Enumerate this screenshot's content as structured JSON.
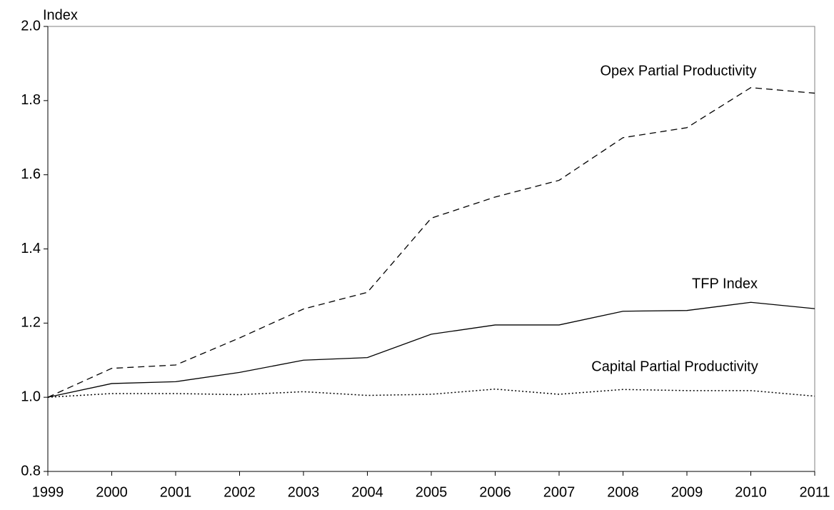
{
  "chart_data": {
    "type": "line",
    "y_label": "Index",
    "x": [
      1999,
      2000,
      2001,
      2002,
      2003,
      2004,
      2005,
      2006,
      2007,
      2008,
      2009,
      2010,
      2011
    ],
    "xlim": [
      1999,
      2011
    ],
    "xticks": [
      1999,
      2000,
      2001,
      2002,
      2003,
      2004,
      2005,
      2006,
      2007,
      2008,
      2009,
      2010,
      2011
    ],
    "ylim": [
      0.8,
      2.0
    ],
    "yticks": [
      {
        "value": 0.8,
        "label": "0.8"
      },
      {
        "value": 1.0,
        "label": "1.0"
      },
      {
        "value": 1.2,
        "label": "1.2"
      },
      {
        "value": 1.4,
        "label": "1.4"
      },
      {
        "value": 1.6,
        "label": "1.6"
      },
      {
        "value": 1.8,
        "label": "1.8"
      },
      {
        "value": 2.0,
        "label": "2.0"
      }
    ],
    "grid": false,
    "series": [
      {
        "name": "Opex Partial Productivity",
        "color": "#000000",
        "style": "dashed",
        "values": [
          1.0,
          1.078,
          1.087,
          1.16,
          1.238,
          1.283,
          1.483,
          1.54,
          1.585,
          1.7,
          1.727,
          1.835,
          1.82
        ]
      },
      {
        "name": "TFP Index",
        "color": "#000000",
        "style": "solid",
        "values": [
          1.0,
          1.037,
          1.042,
          1.067,
          1.1,
          1.107,
          1.17,
          1.195,
          1.195,
          1.232,
          1.234,
          1.256,
          1.239
        ]
      },
      {
        "name": "Capital Partial Productivity",
        "color": "#000000",
        "style": "dotted",
        "values": [
          1.0,
          1.01,
          1.01,
          1.007,
          1.015,
          1.005,
          1.008,
          1.022,
          1.008,
          1.021,
          1.018,
          1.018,
          1.003
        ]
      }
    ]
  }
}
